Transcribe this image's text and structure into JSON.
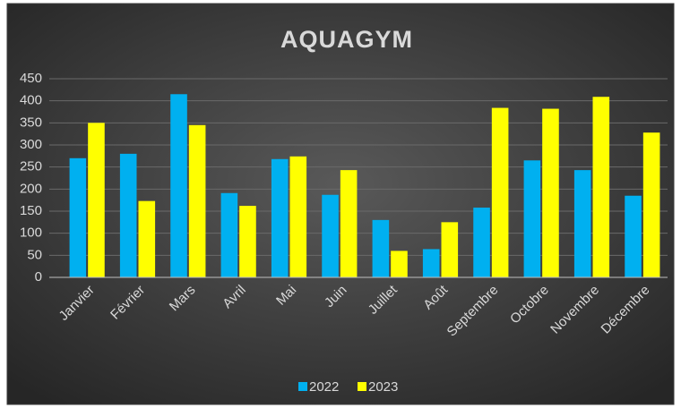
{
  "chart_data": {
    "type": "bar",
    "title": "AQUAGYM",
    "categories": [
      "Janvier",
      "Février",
      "Mars",
      "Avril",
      "Mai",
      "Juin",
      "Juillet",
      "Août",
      "Septembre",
      "Octobre",
      "Novembre",
      "Décembre"
    ],
    "series": [
      {
        "name": "2022",
        "color": "#00b0f0",
        "values": [
          270,
          280,
          415,
          191,
          268,
          187,
          130,
          64,
          158,
          265,
          243,
          185
        ]
      },
      {
        "name": "2023",
        "color": "#ffff00",
        "values": [
          350,
          173,
          345,
          162,
          274,
          243,
          60,
          125,
          384,
          382,
          409,
          328
        ]
      }
    ],
    "ylim": [
      0,
      450
    ],
    "yticks": [
      0,
      50,
      100,
      150,
      200,
      250,
      300,
      350,
      400,
      450
    ],
    "grid": true,
    "legend": "bottom"
  }
}
